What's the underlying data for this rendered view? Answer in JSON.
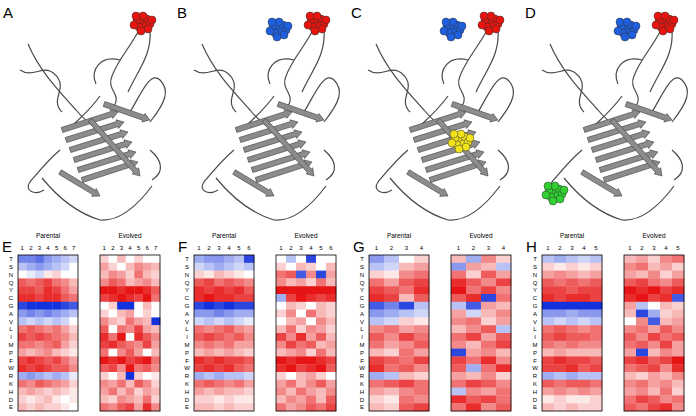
{
  "panel_labels": [
    "A",
    "B",
    "C",
    "D",
    "E",
    "F",
    "G",
    "H"
  ],
  "structures": [
    {
      "sites": [
        "#e8140e"
      ]
    },
    {
      "sites": [
        "#1e5fe0",
        "#e8140e"
      ]
    },
    {
      "sites": [
        "#1e5fe0",
        "#e8140e",
        "#f2e21a"
      ]
    },
    {
      "sites": [
        "#1e5fe0",
        "#e8140e",
        "#2fd02f"
      ]
    }
  ],
  "chart_data": [
    {
      "type": "heatmap",
      "title": "Parental",
      "x": [
        1,
        2,
        3,
        4,
        5,
        6,
        7
      ],
      "categories": [
        "T",
        "S",
        "N",
        "Q",
        "Y",
        "C",
        "G",
        "A",
        "V",
        "L",
        "I",
        "M",
        "P",
        "F",
        "W",
        "R",
        "K",
        "H",
        "D",
        "E"
      ],
      "color_range": [
        -1,
        1
      ],
      "cells": [
        [
          -0.6,
          -0.6,
          -0.7,
          -0.5,
          -0.4,
          -0.3,
          -0.2
        ],
        [
          -0.3,
          -0.4,
          -0.5,
          -0.4,
          -0.3,
          -0.2,
          0
        ],
        [
          0,
          -0.1,
          -0.2,
          0.1,
          0.2,
          0,
          0
        ],
        [
          0.7,
          0.6,
          0.7,
          0.8,
          0.6,
          0.5,
          0.3
        ],
        [
          0.8,
          0.8,
          0.7,
          0.9,
          0.8,
          0.6,
          0.4
        ],
        [
          0.9,
          0.9,
          0.8,
          0.9,
          0.9,
          0.7,
          0.6
        ],
        [
          -0.9,
          -1,
          -1,
          -1,
          -1,
          -0.9,
          -0.8
        ],
        [
          -0.5,
          -0.6,
          -0.5,
          -0.6,
          -0.5,
          -0.4,
          -0.3
        ],
        [
          -0.3,
          -0.2,
          -0.3,
          -0.2,
          -0.3,
          -0.2,
          0
        ],
        [
          0.6,
          0.7,
          0.6,
          0.5,
          0.6,
          0.4,
          0.2
        ],
        [
          0.8,
          0.7,
          0.8,
          0.7,
          0.6,
          0.5,
          0.3
        ],
        [
          0.6,
          0.6,
          0.5,
          0.6,
          0.7,
          0.4,
          0.2
        ],
        [
          0.4,
          0.3,
          0.4,
          0.5,
          0.3,
          0.2,
          0.1
        ],
        [
          0.8,
          0.9,
          0.8,
          0.7,
          0.8,
          0.6,
          0.4
        ],
        [
          0.9,
          0.8,
          0.9,
          0.8,
          0.7,
          0.7,
          0.5
        ],
        [
          -0.4,
          -0.5,
          -0.4,
          -0.3,
          -0.4,
          -0.3,
          -0.1
        ],
        [
          0.6,
          0.5,
          0.7,
          0.6,
          0.5,
          0.4,
          0.2
        ],
        [
          0.3,
          0.4,
          0.3,
          0.2,
          0.3,
          0.2,
          0.1
        ],
        [
          0.2,
          0.1,
          0.2,
          0.3,
          0.1,
          0,
          0.1
        ],
        [
          0.3,
          0.2,
          0.3,
          0.2,
          0.2,
          0.1,
          0
        ]
      ]
    },
    {
      "type": "heatmap",
      "title": "Evolved",
      "x": [
        1,
        2,
        3,
        4,
        5,
        6,
        7
      ],
      "color_range": [
        -1,
        1
      ],
      "cells": [
        [
          0.2,
          0,
          0.3,
          0,
          0.2,
          0,
          0
        ],
        [
          0.4,
          0.2,
          0,
          0.3,
          0.5,
          0.4,
          0.3
        ],
        [
          0.3,
          0.5,
          0.4,
          0.2,
          0.6,
          0.3,
          0.2
        ],
        [
          0.5,
          0.7,
          0.6,
          0.3,
          0.4,
          0.5,
          0.3
        ],
        [
          1,
          1,
          0.9,
          1,
          1,
          0.9,
          0.7
        ],
        [
          0.8,
          0.9,
          1,
          0.9,
          0.8,
          1,
          0.6
        ],
        [
          0,
          0.2,
          -1,
          -1,
          0,
          0.3,
          0
        ],
        [
          0.2,
          0,
          0.3,
          0.4,
          0,
          0.2,
          0
        ],
        [
          0.5,
          0.3,
          0.2,
          0.6,
          0.4,
          0.3,
          -1
        ],
        [
          0.7,
          0,
          0.6,
          0.5,
          0.8,
          0.4,
          0.3
        ],
        [
          0.9,
          0.6,
          1,
          0,
          0.9,
          0.7,
          0.5
        ],
        [
          0.8,
          0.9,
          0.7,
          0.6,
          0.5,
          0.8,
          0.4
        ],
        [
          0.6,
          0,
          0.5,
          0.7,
          0.4,
          0,
          0.3
        ],
        [
          1,
          0.9,
          1,
          0.8,
          0.9,
          1,
          0.6
        ],
        [
          0.7,
          0.8,
          0.5,
          1,
          0.6,
          0.7,
          0.5
        ],
        [
          0.2,
          0,
          0.3,
          -1,
          0.2,
          0,
          0.1
        ],
        [
          0.5,
          0.4,
          0.6,
          0.3,
          0.7,
          0.5,
          0.2
        ],
        [
          0.4,
          0.6,
          0.3,
          0.5,
          0.2,
          0.4,
          0.3
        ],
        [
          0.3,
          0.2,
          0.5,
          0.4,
          0.3,
          0.6,
          0.2
        ],
        [
          0.6,
          0.5,
          0.7,
          0.8,
          0.4,
          0.9,
          0.5
        ]
      ]
    },
    {
      "type": "heatmap",
      "title": "Parental",
      "x": [
        1,
        2,
        3,
        4,
        5,
        6
      ],
      "categories": [
        "T",
        "S",
        "N",
        "Q",
        "Y",
        "C",
        "G",
        "A",
        "V",
        "L",
        "I",
        "M",
        "P",
        "F",
        "W",
        "R",
        "K",
        "H",
        "D",
        "E"
      ],
      "color_range": [
        -1,
        1
      ],
      "cells": [
        [
          -0.4,
          -0.5,
          -0.5,
          -0.4,
          -0.3,
          -0.9
        ],
        [
          -0.2,
          -0.3,
          -0.4,
          -0.3,
          -0.2,
          -0.3
        ],
        [
          0.2,
          0.1,
          0.3,
          0.2,
          0.1,
          0
        ],
        [
          0.7,
          0.8,
          0.6,
          0.7,
          0.6,
          0.5
        ],
        [
          0.9,
          0.8,
          0.9,
          0.8,
          0.9,
          0.7
        ],
        [
          0.9,
          1,
          0.9,
          0.9,
          0.8,
          0.8
        ],
        [
          -0.9,
          -1,
          -0.9,
          -1,
          -0.9,
          -0.9
        ],
        [
          -0.5,
          -0.5,
          -0.6,
          -0.5,
          -0.4,
          -0.4
        ],
        [
          -0.2,
          -0.3,
          -0.2,
          -0.3,
          -0.2,
          -0.1
        ],
        [
          0.6,
          0.5,
          0.6,
          0.7,
          0.5,
          0.4
        ],
        [
          0.7,
          0.8,
          0.7,
          0.6,
          0.7,
          0.5
        ],
        [
          0.5,
          0.6,
          0.5,
          0.6,
          0.4,
          0.4
        ],
        [
          0.3,
          0.4,
          0.3,
          0.4,
          0.3,
          0.2
        ],
        [
          0.9,
          0.8,
          0.9,
          0.8,
          0.8,
          0.7
        ],
        [
          0.8,
          0.9,
          0.8,
          0.9,
          0.7,
          0.6
        ],
        [
          -0.4,
          -0.3,
          -0.4,
          -0.3,
          -0.3,
          -0.2
        ],
        [
          0.6,
          0.7,
          0.6,
          0.5,
          0.6,
          0.4
        ],
        [
          0.4,
          0.3,
          0.4,
          0.3,
          0.3,
          0.2
        ],
        [
          0.2,
          0.2,
          0.1,
          0.2,
          0.1,
          0.1
        ],
        [
          0.3,
          0.3,
          0.2,
          0.3,
          0.2,
          0.2
        ]
      ]
    },
    {
      "type": "heatmap",
      "title": "Evolved",
      "x": [
        1,
        2,
        3,
        4,
        5,
        6
      ],
      "color_range": [
        -1,
        1
      ],
      "cells": [
        [
          0,
          -0.3,
          0,
          -0.9,
          0,
          0
        ],
        [
          0.2,
          0,
          0.3,
          0.2,
          0,
          0.3
        ],
        [
          0.6,
          0.7,
          -0.8,
          0.5,
          -0.9,
          0.4
        ],
        [
          0.5,
          0.3,
          0.4,
          0.2,
          0.6,
          0.3
        ],
        [
          1,
          1,
          1,
          1,
          1,
          1
        ],
        [
          -0.4,
          0.8,
          1,
          0.9,
          0.8,
          0.9
        ],
        [
          0,
          0.3,
          0.2,
          0,
          0.3,
          0.2
        ],
        [
          0.2,
          0.5,
          0,
          0.6,
          0.3,
          0.2
        ],
        [
          0,
          0.3,
          0.4,
          0,
          0.5,
          0.3
        ],
        [
          0.3,
          0.6,
          0.2,
          0.5,
          0.4,
          0.2
        ],
        [
          0.8,
          0.5,
          0.9,
          0.4,
          0.7,
          0.3
        ],
        [
          0.5,
          0.8,
          0.6,
          0.7,
          0.3,
          0.4
        ],
        [
          0.3,
          0.4,
          0.5,
          0.2,
          0.6,
          0.3
        ],
        [
          1,
          0.9,
          1,
          1,
          0.9,
          0.8
        ],
        [
          0.9,
          1,
          0.8,
          0.9,
          1,
          0.7
        ],
        [
          0.2,
          0,
          0.3,
          0.4,
          0.2,
          0
        ],
        [
          0.4,
          0.6,
          0.3,
          0.5,
          0.7,
          0.4
        ],
        [
          0.5,
          0.3,
          0.6,
          0.4,
          0.3,
          0.5
        ],
        [
          0.3,
          0.5,
          0.4,
          0.6,
          0.3,
          0.7
        ],
        [
          0.6,
          0.4,
          0.5,
          0.7,
          0.6,
          0.8
        ]
      ]
    },
    {
      "type": "heatmap",
      "title": "Parental",
      "x": [
        1,
        2,
        3,
        4
      ],
      "categories": [
        "T",
        "S",
        "N",
        "Q",
        "Y",
        "C",
        "G",
        "A",
        "V",
        "L",
        "I",
        "M",
        "P",
        "F",
        "W",
        "R",
        "K",
        "H",
        "D",
        "E"
      ],
      "color_range": [
        -1,
        1
      ],
      "cells": [
        [
          -0.5,
          -0.3,
          0,
          0.2
        ],
        [
          -0.3,
          -0.2,
          0.3,
          0.4
        ],
        [
          0.2,
          0.1,
          0.5,
          0.6
        ],
        [
          0.6,
          0.4,
          0.7,
          0.8
        ],
        [
          0.8,
          0.7,
          0.6,
          0.9
        ],
        [
          0.9,
          0.8,
          0.3,
          0.7
        ],
        [
          -0.8,
          -0.6,
          -0.9,
          -0.3
        ],
        [
          -0.5,
          -0.4,
          -0.3,
          -0.2
        ],
        [
          -0.3,
          -0.2,
          0.2,
          0.1
        ],
        [
          0.5,
          0.6,
          0.4,
          0.5
        ],
        [
          0.7,
          0.5,
          0.8,
          0.6
        ],
        [
          0.6,
          0.4,
          0.5,
          0.7
        ],
        [
          0.3,
          0.2,
          0.6,
          0.4
        ],
        [
          0.8,
          0.7,
          0.6,
          0.8
        ],
        [
          0.9,
          0.6,
          0.7,
          0.5
        ],
        [
          -0.4,
          -0.3,
          0.3,
          0.2
        ],
        [
          0.6,
          0.7,
          0.8,
          0.6
        ],
        [
          0.4,
          0.3,
          0.5,
          0.6
        ],
        [
          0.2,
          0.1,
          0.6,
          0.5
        ],
        [
          0.3,
          0.2,
          0.7,
          0.8
        ]
      ]
    },
    {
      "type": "heatmap",
      "title": "Evolved",
      "x": [
        1,
        2,
        3,
        4
      ],
      "color_range": [
        -1,
        1
      ],
      "cells": [
        [
          0.3,
          -0.4,
          0.5,
          0.2
        ],
        [
          -0.5,
          0.4,
          0.3,
          -0.3
        ],
        [
          0.6,
          0.2,
          0.7,
          0.4
        ],
        [
          0.9,
          0.7,
          0.5,
          0.8
        ],
        [
          1,
          0.6,
          0.8,
          0.5
        ],
        [
          0.7,
          0.9,
          -0.9,
          0.6
        ],
        [
          -0.3,
          -0.8,
          0.4,
          0.3
        ],
        [
          0.4,
          -0.2,
          0.3,
          0.5
        ],
        [
          0.5,
          0.6,
          0.2,
          0.4
        ],
        [
          0.3,
          0.5,
          0.7,
          -0.3
        ],
        [
          0.6,
          0.8,
          0.4,
          0.7
        ],
        [
          0.5,
          0.3,
          0.6,
          0.8
        ],
        [
          -0.9,
          0.4,
          0.5,
          0.3
        ],
        [
          0.8,
          0.6,
          0.9,
          0.5
        ],
        [
          0.7,
          -0.4,
          0.6,
          0.9
        ],
        [
          0.4,
          0.3,
          0.5,
          0.2
        ],
        [
          0.6,
          0.8,
          0.7,
          0.5
        ],
        [
          -0.3,
          0.5,
          0.4,
          0.6
        ],
        [
          0.9,
          0.7,
          0.8,
          0.6
        ],
        [
          0.6,
          0.9,
          0.5,
          0.7
        ]
      ]
    },
    {
      "type": "heatmap",
      "title": "Parental",
      "x": [
        1,
        2,
        3,
        4,
        5
      ],
      "categories": [
        "T",
        "S",
        "N",
        "Q",
        "Y",
        "C",
        "G",
        "A",
        "V",
        "L",
        "I",
        "M",
        "P",
        "F",
        "W",
        "R",
        "K",
        "H",
        "D",
        "E"
      ],
      "color_range": [
        -1,
        1
      ],
      "cells": [
        [
          -0.3,
          -0.4,
          -0.3,
          -0.2,
          -0.3
        ],
        [
          0.2,
          0.1,
          0.2,
          0.1,
          0.2
        ],
        [
          0.4,
          0.5,
          0.4,
          0.3,
          0.4
        ],
        [
          0.7,
          0.6,
          0.7,
          0.6,
          0.7
        ],
        [
          0.8,
          0.8,
          0.7,
          0.8,
          0.8
        ],
        [
          0.9,
          0.8,
          0.9,
          0.9,
          0.8
        ],
        [
          -1,
          -1,
          -1,
          -1,
          -1
        ],
        [
          -0.5,
          -0.5,
          -0.4,
          -0.5,
          -0.5
        ],
        [
          -0.3,
          -0.2,
          -0.3,
          -0.2,
          -0.3
        ],
        [
          0.6,
          0.7,
          0.6,
          0.5,
          0.6
        ],
        [
          0.7,
          0.8,
          0.7,
          0.7,
          0.6
        ],
        [
          0.6,
          0.5,
          0.6,
          0.5,
          0.5
        ],
        [
          0.3,
          0.4,
          0.3,
          0.3,
          0.3
        ],
        [
          0.8,
          0.9,
          0.8,
          0.8,
          0.7
        ],
        [
          0.8,
          0.8,
          0.9,
          0.7,
          0.8
        ],
        [
          -0.4,
          -0.3,
          -0.4,
          -0.3,
          -0.3
        ],
        [
          0.7,
          0.6,
          0.7,
          0.7,
          0.6
        ],
        [
          0.4,
          0.5,
          0.4,
          0.5,
          0.4
        ],
        [
          0.1,
          0.2,
          0.1,
          0.1,
          0.2
        ],
        [
          0.3,
          0.2,
          0.3,
          0.2,
          0.2
        ]
      ]
    },
    {
      "type": "heatmap",
      "title": "Evolved",
      "x": [
        1,
        2,
        3,
        4,
        5
      ],
      "color_range": [
        -1,
        1
      ],
      "cells": [
        [
          0.3,
          0.4,
          0.2,
          0.5,
          0.6
        ],
        [
          0.5,
          0.6,
          0.3,
          0.4,
          0.2
        ],
        [
          0.4,
          0.3,
          0.5,
          0.2,
          0.4
        ],
        [
          0.7,
          0.8,
          0.6,
          0.5,
          0.7
        ],
        [
          1,
          0.9,
          1,
          0.8,
          0.9
        ],
        [
          0.9,
          1,
          0.8,
          0.9,
          -0.8
        ],
        [
          0.4,
          -0.3,
          0,
          0.3,
          0.2
        ],
        [
          0.3,
          -0.9,
          -0.4,
          0.2,
          0.3
        ],
        [
          0,
          0.5,
          -0.8,
          0.3,
          0.4
        ],
        [
          0.5,
          0.6,
          0.4,
          0.7,
          0.5
        ],
        [
          0.7,
          0.5,
          0.8,
          0.6,
          0.7
        ],
        [
          0.6,
          0.7,
          0.5,
          0.8,
          0.4
        ],
        [
          0.4,
          -0.9,
          0.3,
          0.5,
          0.4
        ],
        [
          0.8,
          0.9,
          0.7,
          0.8,
          1
        ],
        [
          0.6,
          0.7,
          0.8,
          0.5,
          0.9
        ],
        [
          0.3,
          0.2,
          0.4,
          0.3,
          0.5
        ],
        [
          0.5,
          0.6,
          0.4,
          0.5,
          0.3
        ],
        [
          0.4,
          0.5,
          0.3,
          0.6,
          0.2
        ],
        [
          0.6,
          0.8,
          0.7,
          0.5,
          0.6
        ],
        [
          0.7,
          0.6,
          0.8,
          0.9,
          0.5
        ]
      ]
    }
  ]
}
